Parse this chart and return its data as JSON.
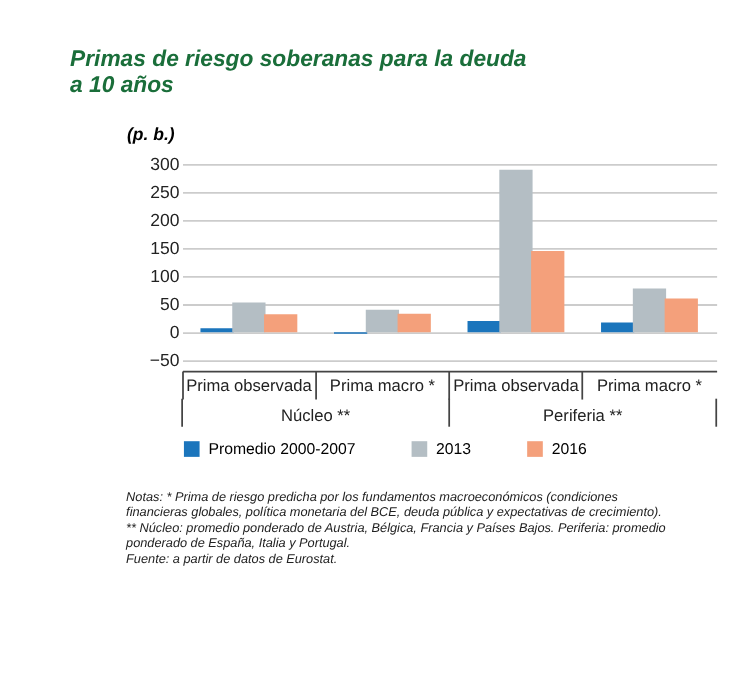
{
  "chart_data": {
    "type": "bar",
    "title": "Primas de riesgo soberanas para la deuda a 10 años",
    "ylabel": "(p. b.)",
    "categories": [
      "Prima observada",
      "Prima macro *",
      "Prima observada",
      "Prima macro *"
    ],
    "series": [
      {
        "name": "Promedio 2000-2007",
        "color": "#1b75bc",
        "values": [
          7,
          -3,
          20,
          17
        ]
      },
      {
        "name": "2013",
        "color": "#b4bec4",
        "values": [
          53,
          40,
          290,
          78
        ]
      },
      {
        "name": "2016",
        "color": "#f4a07b",
        "values": [
          32,
          33,
          145,
          60
        ]
      }
    ],
    "ylim": [
      -50,
      300
    ],
    "yticks": [
      -50,
      0,
      50,
      100,
      150,
      200,
      250,
      300
    ],
    "grid": "y",
    "legend": "bottom",
    "annotations": [
      "Núcleo **",
      "Periferia **",
      "Notas:  * Prima de riesgo predicha por los fundamentos macroeconómicos (condiciones",
      "financieras globales, política monetaria del BCE, deuda pública y expectativas de crecimiento).",
      "** Núcleo: promedio ponderado de Austria, Bélgica, Francia y Países Bajos. Periferia: promedio",
      "ponderado de España, Italia y Portugal.",
      "Fuente: a partir de datos de Eurostat."
    ]
  }
}
